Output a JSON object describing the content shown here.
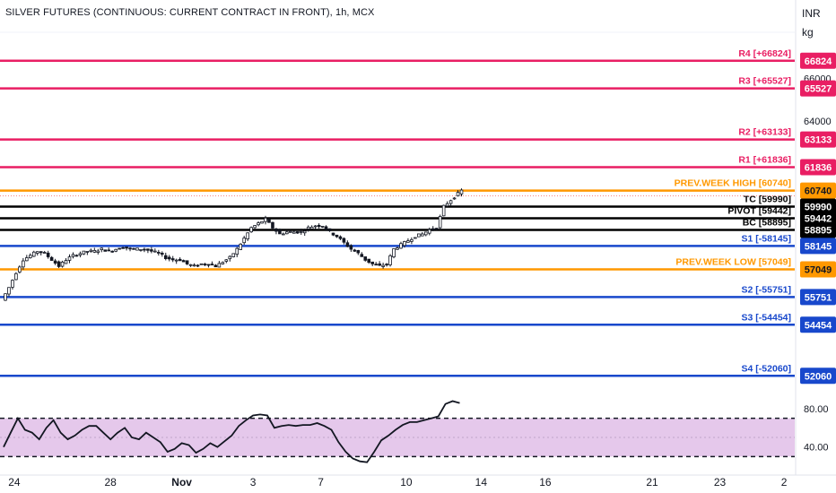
{
  "header": {
    "title": "SILVER FUTURES (CONTINUOUS: CURRENT CONTRACT IN FRONT), 1h, MCX",
    "currency": "INR",
    "unit": "kg"
  },
  "chart_data": {
    "type": "candlestick",
    "y_range": [
      51400,
      68200
    ],
    "price_ticks": [
      {
        "value": 66000,
        "label": "66000"
      },
      {
        "value": 64000,
        "label": "64000"
      }
    ],
    "levels": [
      {
        "name": "R4",
        "value": 66824,
        "label": "R4 [+66824]",
        "badge": "66824",
        "color": "#e91e63",
        "label_color": "#e91e63",
        "badge_bg": "#e91e63",
        "badge_fg": "#ffffff",
        "width": 2.5
      },
      {
        "name": "R3",
        "value": 65527,
        "label": "R3 [+65527]",
        "badge": "65527",
        "color": "#e91e63",
        "label_color": "#e91e63",
        "badge_bg": "#e91e63",
        "badge_fg": "#ffffff",
        "width": 2.5
      },
      {
        "name": "R2",
        "value": 63133,
        "label": "R2 [+63133]",
        "badge": "63133",
        "color": "#e91e63",
        "label_color": "#e91e63",
        "badge_bg": "#e91e63",
        "badge_fg": "#ffffff",
        "width": 2.5
      },
      {
        "name": "R1",
        "value": 61836,
        "label": "R1 [+61836]",
        "badge": "61836",
        "color": "#e91e63",
        "label_color": "#e91e63",
        "badge_bg": "#e91e63",
        "badge_fg": "#ffffff",
        "width": 2.5
      },
      {
        "name": "PREV.WEEK HIGH",
        "value": 60740,
        "label": "PREV.WEEK HIGH [60740]",
        "badge": "60740",
        "color": "#ff9800",
        "label_color": "#ff9800",
        "badge_bg": "#ff9800",
        "badge_fg": "#131722",
        "width": 2.5
      },
      {
        "name": "TC",
        "value": 59990,
        "label": "TC [59990]",
        "badge": "59990",
        "color": "#000000",
        "label_color": "#000000",
        "badge_bg": "#000000",
        "badge_fg": "#ffffff",
        "width": 2.5
      },
      {
        "name": "PIVOT",
        "value": 59442,
        "label": "PIVOT [59442]",
        "badge": "59442",
        "color": "#000000",
        "label_color": "#000000",
        "badge_bg": "#000000",
        "badge_fg": "#ffffff",
        "width": 2.5
      },
      {
        "name": "BC",
        "value": 58895,
        "label": "BC [58895]",
        "badge": "58895",
        "color": "#000000",
        "label_color": "#000000",
        "badge_bg": "#000000",
        "badge_fg": "#ffffff",
        "width": 2.5
      },
      {
        "name": "S1",
        "value": 58145,
        "label": "S1 [-58145]",
        "badge": "58145",
        "color": "#1848cc",
        "label_color": "#1848cc",
        "badge_bg": "#1848cc",
        "badge_fg": "#ffffff",
        "width": 2.5
      },
      {
        "name": "PREV.WEEK LOW",
        "value": 57049,
        "label": "PREV.WEEK LOW [57049]",
        "badge": "57049",
        "color": "#ff9800",
        "label_color": "#ff9800",
        "badge_bg": "#ff9800",
        "badge_fg": "#131722",
        "width": 2.5
      },
      {
        "name": "S2",
        "value": 55751,
        "label": "S2 [-55751]",
        "badge": "55751",
        "color": "#1848cc",
        "label_color": "#1848cc",
        "badge_bg": "#1848cc",
        "badge_fg": "#ffffff",
        "width": 2.5
      },
      {
        "name": "S3",
        "value": 54454,
        "label": "S3 [-54454]",
        "badge": "54454",
        "color": "#1848cc",
        "label_color": "#1848cc",
        "badge_bg": "#1848cc",
        "badge_fg": "#ffffff",
        "width": 2.5
      },
      {
        "name": "S4",
        "value": 52060,
        "label": "S4 [-52060]",
        "badge": "52060",
        "color": "#1848cc",
        "label_color": "#1848cc",
        "badge_bg": "#1848cc",
        "badge_fg": "#ffffff",
        "width": 2.5
      }
    ],
    "last_price": 60740,
    "price_path": [
      [
        0,
        55600
      ],
      [
        2,
        56200
      ],
      [
        4,
        56900
      ],
      [
        6,
        57500
      ],
      [
        8,
        57700
      ],
      [
        10,
        57900
      ],
      [
        12,
        57800
      ],
      [
        14,
        57500
      ],
      [
        16,
        57200
      ],
      [
        18,
        57500
      ],
      [
        20,
        57700
      ],
      [
        22,
        57800
      ],
      [
        24,
        57900
      ],
      [
        26,
        57900
      ],
      [
        28,
        58000
      ],
      [
        30,
        57900
      ],
      [
        32,
        58000
      ],
      [
        34,
        58100
      ],
      [
        36,
        58000
      ],
      [
        38,
        58000
      ],
      [
        40,
        58000
      ],
      [
        42,
        57900
      ],
      [
        44,
        57800
      ],
      [
        46,
        57600
      ],
      [
        48,
        57500
      ],
      [
        50,
        57500
      ],
      [
        52,
        57300
      ],
      [
        54,
        57200
      ],
      [
        56,
        57300
      ],
      [
        58,
        57300
      ],
      [
        60,
        57200
      ],
      [
        62,
        57400
      ],
      [
        64,
        57600
      ],
      [
        66,
        58000
      ],
      [
        68,
        58500
      ],
      [
        70,
        59000
      ],
      [
        72,
        59200
      ],
      [
        74,
        59400
      ],
      [
        76,
        59000
      ],
      [
        78,
        58700
      ],
      [
        80,
        58800
      ],
      [
        82,
        58800
      ],
      [
        84,
        58800
      ],
      [
        86,
        59000
      ],
      [
        88,
        59100
      ],
      [
        90,
        59100
      ],
      [
        92,
        58800
      ],
      [
        94,
        58600
      ],
      [
        96,
        58300
      ],
      [
        98,
        58000
      ],
      [
        100,
        57800
      ],
      [
        102,
        57500
      ],
      [
        104,
        57300
      ],
      [
        106,
        57200
      ],
      [
        108,
        57300
      ],
      [
        110,
        58000
      ],
      [
        112,
        58200
      ],
      [
        114,
        58400
      ],
      [
        116,
        58600
      ],
      [
        118,
        58700
      ],
      [
        120,
        58900
      ],
      [
        122,
        59000
      ],
      [
        124,
        60000
      ],
      [
        126,
        60300
      ],
      [
        128,
        60600
      ],
      [
        129,
        60740
      ]
    ],
    "oscillator": {
      "levels": [
        {
          "value": 80,
          "label": "80.00"
        },
        {
          "value": 40,
          "label": "40.00"
        }
      ],
      "band": [
        70,
        30
      ],
      "range": [
        20,
        95
      ],
      "band_color": "#e1bee7",
      "path": [
        [
          0,
          40
        ],
        [
          2,
          55
        ],
        [
          4,
          70
        ],
        [
          6,
          58
        ],
        [
          8,
          55
        ],
        [
          10,
          48
        ],
        [
          12,
          60
        ],
        [
          14,
          68
        ],
        [
          16,
          55
        ],
        [
          18,
          48
        ],
        [
          20,
          52
        ],
        [
          22,
          58
        ],
        [
          24,
          62
        ],
        [
          26,
          62
        ],
        [
          28,
          55
        ],
        [
          30,
          48
        ],
        [
          32,
          55
        ],
        [
          34,
          60
        ],
        [
          36,
          50
        ],
        [
          38,
          48
        ],
        [
          40,
          55
        ],
        [
          42,
          50
        ],
        [
          44,
          45
        ],
        [
          46,
          35
        ],
        [
          48,
          38
        ],
        [
          50,
          44
        ],
        [
          52,
          42
        ],
        [
          54,
          34
        ],
        [
          56,
          38
        ],
        [
          58,
          44
        ],
        [
          60,
          40
        ],
        [
          62,
          46
        ],
        [
          64,
          52
        ],
        [
          66,
          62
        ],
        [
          68,
          68
        ],
        [
          70,
          73
        ],
        [
          72,
          74
        ],
        [
          74,
          73
        ],
        [
          76,
          60
        ],
        [
          78,
          62
        ],
        [
          80,
          63
        ],
        [
          82,
          62
        ],
        [
          84,
          63
        ],
        [
          86,
          63
        ],
        [
          88,
          65
        ],
        [
          90,
          62
        ],
        [
          92,
          58
        ],
        [
          94,
          45
        ],
        [
          96,
          35
        ],
        [
          98,
          28
        ],
        [
          100,
          25
        ],
        [
          102,
          24
        ],
        [
          104,
          35
        ],
        [
          106,
          47
        ],
        [
          108,
          52
        ],
        [
          110,
          58
        ],
        [
          112,
          63
        ],
        [
          114,
          66
        ],
        [
          116,
          66
        ],
        [
          118,
          68
        ],
        [
          120,
          70
        ],
        [
          122,
          72
        ],
        [
          124,
          85
        ],
        [
          126,
          88
        ],
        [
          128,
          86
        ]
      ]
    },
    "x_ticks": [
      {
        "t": 3,
        "label": "24"
      },
      {
        "t": 30,
        "label": "28"
      },
      {
        "t": 50,
        "label": "Nov"
      },
      {
        "t": 70,
        "label": "3"
      },
      {
        "t": 89,
        "label": "7"
      },
      {
        "t": 113,
        "label": "10"
      },
      {
        "t": 134,
        "label": "14"
      },
      {
        "t": 152,
        "label": "16"
      },
      {
        "t": 182,
        "label": "21"
      },
      {
        "t": 201,
        "label": "23"
      },
      {
        "t": 219,
        "label": "2"
      }
    ],
    "x_domain": [
      0,
      221
    ]
  }
}
